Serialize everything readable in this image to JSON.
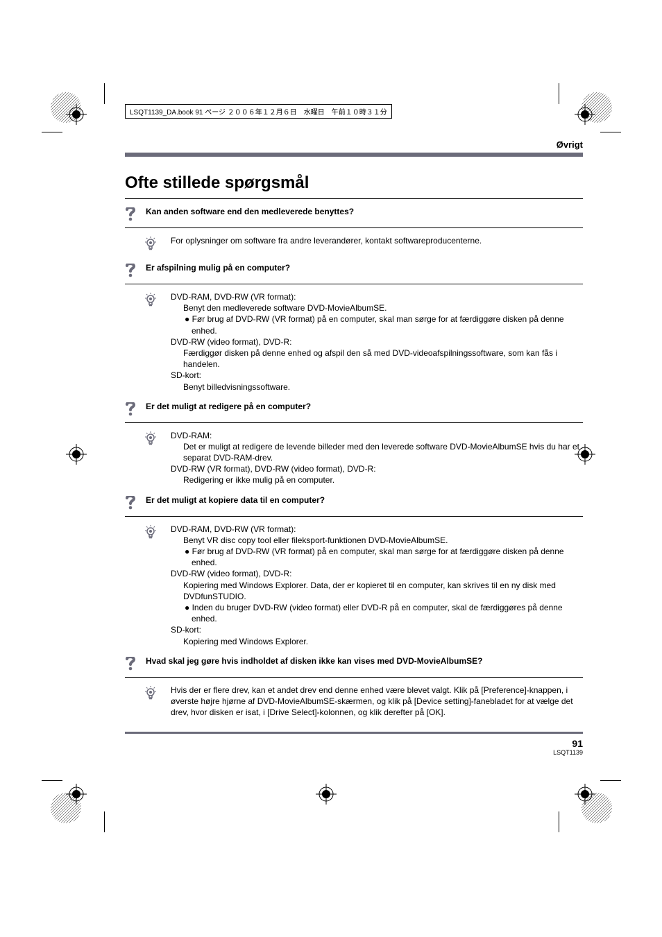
{
  "book_header": "LSQT1139_DA.book  91 ページ  ２００６年１２月６日　水曜日　午前１０時３１分",
  "section_label": "Øvrigt",
  "title": "Ofte stillede spørgsmål",
  "faqs": [
    {
      "q": "Kan anden software end den medleverede benyttes?",
      "a": [
        {
          "t": "plain",
          "v": "For oplysninger om software fra andre leverandører, kontakt softwareproducenterne."
        }
      ]
    },
    {
      "q": "Er afspilning mulig på en computer?",
      "a": [
        {
          "t": "plain",
          "v": "DVD-RAM, DVD-RW (VR format):"
        },
        {
          "t": "sub",
          "v": "Benyt den medleverede software DVD-MovieAlbumSE."
        },
        {
          "t": "bullet",
          "v": "Før brug af DVD-RW (VR format) på en computer, skal man sørge for at færdiggøre disken på denne enhed."
        },
        {
          "t": "plain",
          "v": "DVD-RW (video format), DVD-R:"
        },
        {
          "t": "sub",
          "v": "Færdiggør disken på denne enhed og afspil den så med DVD-videoafspilningssoftware, som kan fås i handelen."
        },
        {
          "t": "plain",
          "v": "SD-kort:"
        },
        {
          "t": "sub",
          "v": "Benyt billedvisningssoftware."
        }
      ]
    },
    {
      "q": "Er det muligt at redigere på en computer?",
      "a": [
        {
          "t": "plain",
          "v": "DVD-RAM:"
        },
        {
          "t": "sub",
          "v": "Det er muligt at redigere de levende billeder med den leverede software DVD-MovieAlbumSE hvis du har et separat DVD-RAM-drev."
        },
        {
          "t": "plain",
          "v": "DVD-RW (VR format), DVD-RW (video format), DVD-R:"
        },
        {
          "t": "sub",
          "v": "Redigering er ikke mulig på en computer."
        }
      ]
    },
    {
      "q": "Er det muligt at kopiere data til en computer?",
      "a": [
        {
          "t": "plain",
          "v": "DVD-RAM, DVD-RW (VR format):"
        },
        {
          "t": "sub",
          "v": "Benyt VR disc copy tool eller fileksport-funktionen DVD-MovieAlbumSE."
        },
        {
          "t": "bullet",
          "v": "Før brug af DVD-RW (VR format) på en computer, skal man sørge for at færdiggøre disken på denne enhed."
        },
        {
          "t": "plain",
          "v": "DVD-RW (video format), DVD-R:"
        },
        {
          "t": "sub",
          "v": "Kopiering med Windows Explorer. Data, der er kopieret til en computer, kan skrives til en ny disk med DVDfunSTUDIO."
        },
        {
          "t": "bullet",
          "v": "Inden du bruger DVD-RW (video format) eller DVD-R på en computer, skal de færdiggøres på denne enhed."
        },
        {
          "t": "plain",
          "v": "SD-kort:"
        },
        {
          "t": "sub",
          "v": "Kopiering med Windows Explorer."
        }
      ]
    },
    {
      "q": "Hvad skal jeg gøre hvis indholdet af disken ikke kan vises med DVD-MovieAlbumSE?",
      "a": [
        {
          "t": "plain",
          "v": "Hvis der er flere drev, kan et andet drev end denne enhed være blevet valgt. Klik på [Preference]-knappen, i øverste højre hjørne af DVD-MovieAlbumSE-skærmen, og klik på [Device setting]-fanebladet for at vælge det drev, hvor disken er isat, i [Drive Select]-kolonnen, og klik derefter på [OK]."
        }
      ]
    }
  ],
  "page_number": "91",
  "page_code": "LSQT1139",
  "colors": {
    "rule": "#6b6b7a",
    "text": "#000000"
  }
}
